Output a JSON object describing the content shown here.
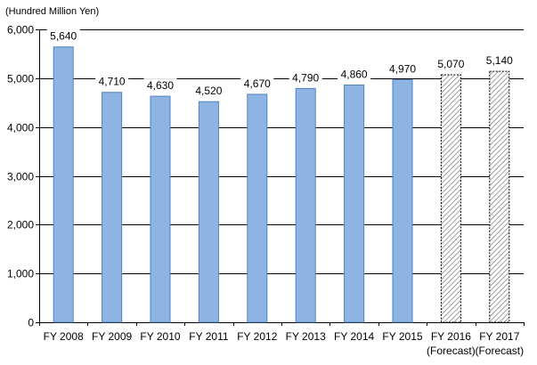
{
  "chart_data": {
    "type": "bar",
    "unit_label": "(Hundred Million Yen)",
    "categories": [
      "FY 2008",
      "FY 2009",
      "FY 2010",
      "FY 2011",
      "FY 2012",
      "FY 2013",
      "FY 2014",
      "FY 2015",
      "FY 2016",
      "FY 2017"
    ],
    "category_sublabels": [
      "",
      "",
      "",
      "",
      "",
      "",
      "",
      "",
      "(Forecast)",
      "(Forecast)"
    ],
    "values": [
      5640,
      4710,
      4630,
      4520,
      4670,
      4790,
      4860,
      4970,
      5070,
      5140
    ],
    "value_labels": [
      "5,640",
      "4,710",
      "4,630",
      "4,520",
      "4,670",
      "4,790",
      "4,860",
      "4,970",
      "5,070",
      "5,140"
    ],
    "forecast": [
      false,
      false,
      false,
      false,
      false,
      false,
      false,
      false,
      true,
      true
    ],
    "ylim": [
      0,
      6000
    ],
    "yticks": [
      0,
      1000,
      2000,
      3000,
      4000,
      5000,
      6000
    ],
    "ytick_labels": [
      "0",
      "1,000",
      "2,000",
      "3,000",
      "4,000",
      "5,000",
      "6,000"
    ],
    "grid": true,
    "legend": false,
    "colors": {
      "bar_fill": "#8eb4e3",
      "bar_stroke": "#4f81bd",
      "forecast_stroke": "#000000",
      "forecast_hatch": "#777777",
      "grid": "#000000",
      "axis": "#000000"
    }
  }
}
